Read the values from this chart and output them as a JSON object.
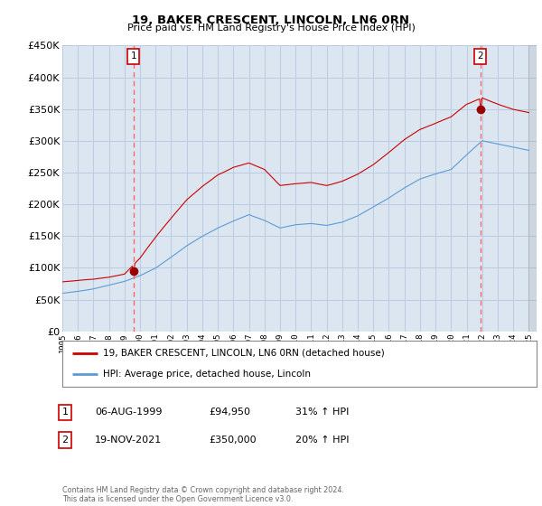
{
  "title": "19, BAKER CRESCENT, LINCOLN, LN6 0RN",
  "subtitle": "Price paid vs. HM Land Registry's House Price Index (HPI)",
  "legend_line1": "19, BAKER CRESCENT, LINCOLN, LN6 0RN (detached house)",
  "legend_line2": "HPI: Average price, detached house, Lincoln",
  "transaction1_label": "1",
  "transaction1_date": "06-AUG-1999",
  "transaction1_price": "£94,950",
  "transaction1_hpi": "31% ↑ HPI",
  "transaction1_year": 1999.583,
  "transaction1_value": 94950,
  "transaction2_label": "2",
  "transaction2_date": "19-NOV-2021",
  "transaction2_price": "£350,000",
  "transaction2_hpi": "20% ↑ HPI",
  "transaction2_year": 2021.875,
  "transaction2_value": 350000,
  "footnote": "Contains HM Land Registry data © Crown copyright and database right 2024.\nThis data is licensed under the Open Government Licence v3.0.",
  "ylim": [
    0,
    450000
  ],
  "yticks": [
    0,
    50000,
    100000,
    150000,
    200000,
    250000,
    300000,
    350000,
    400000,
    450000
  ],
  "xlim_start": 1995.0,
  "xlim_end": 2025.5,
  "chart_bg_color": "#dce6f1",
  "background_color": "#ffffff",
  "grid_color": "#b8cce4",
  "red_line_color": "#cc0000",
  "blue_line_color": "#5b9bd5",
  "vline_color": "#ff6666",
  "marker_color": "#990000",
  "box_color": "#cc0000"
}
